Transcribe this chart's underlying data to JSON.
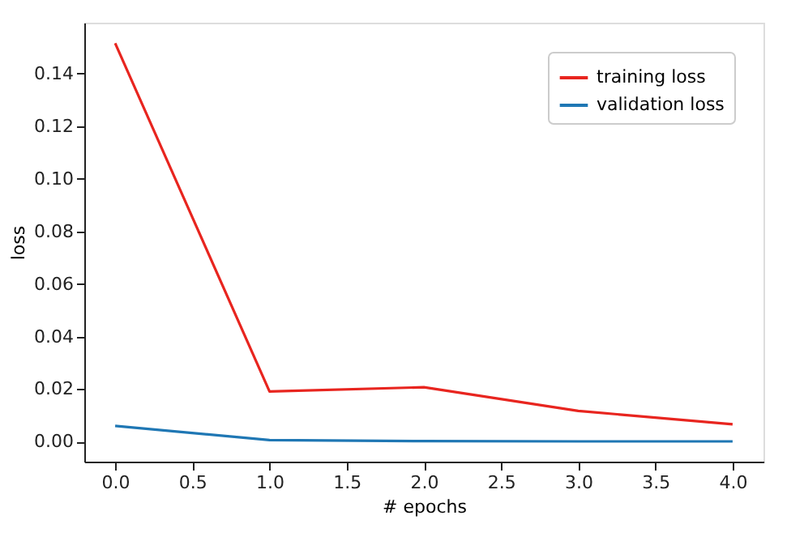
{
  "chart_data": {
    "type": "line",
    "xlabel": "# epochs",
    "ylabel": "loss",
    "x": [
      0,
      1,
      2,
      3,
      4
    ],
    "series": [
      {
        "name": "training loss",
        "color": "#e8251f",
        "values": [
          0.1516,
          0.0191,
          0.0207,
          0.0117,
          0.0066
        ]
      },
      {
        "name": "validation loss",
        "color": "#1f77b4",
        "values": [
          0.006,
          0.0006,
          0.0002,
          0.0001,
          0.0001
        ]
      }
    ],
    "xlim": [
      -0.2,
      4.2
    ],
    "xticks": [
      {
        "value": 0,
        "label": "0.0"
      },
      0.5,
      {
        "value": 1,
        "label": "1.0"
      },
      1.5,
      {
        "value": 2,
        "label": "2.0"
      },
      2.5,
      {
        "value": 3,
        "label": "3.0"
      },
      3.5,
      {
        "value": 4,
        "label": "4.0"
      }
    ],
    "ylim": [
      -0.0076,
      0.1594
    ],
    "yticks": [
      {
        "value": 0,
        "label": "0.00"
      },
      0.02,
      0.04,
      0.06,
      0.08,
      {
        "value": 0.1,
        "label": "0.10"
      },
      0.12,
      0.14
    ],
    "grid": false,
    "legend": "top right",
    "marker": "none",
    "line_style": "solid"
  }
}
